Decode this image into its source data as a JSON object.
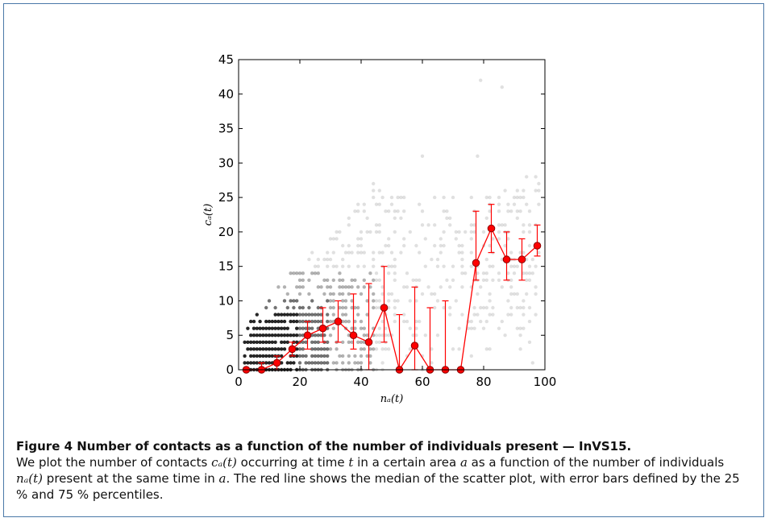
{
  "figure": {
    "caption_title": "Figure 4 Number of contacts as a function of the number of individuals present — InVS15.",
    "caption_parts": [
      {
        "text": "We plot the number of contacts ",
        "math": false
      },
      {
        "text": "cₐ(t)",
        "math": true
      },
      {
        "text": " occurring at time ",
        "math": false
      },
      {
        "text": "t",
        "math": true
      },
      {
        "text": " in a certain area ",
        "math": false
      },
      {
        "text": "a",
        "math": true
      },
      {
        "text": " as a function of the number of individuals ",
        "math": false
      },
      {
        "text": "nₐ(t)",
        "math": true
      },
      {
        "text": " present at the same time in ",
        "math": false
      },
      {
        "text": "a",
        "math": true
      },
      {
        "text": ". The red line shows the median of the scatter plot, with error bars defined by the ",
        "math": false
      },
      {
        "text": "25 %",
        "math": false
      },
      {
        "text": " and ",
        "math": false
      },
      {
        "text": "75 %",
        "math": false
      },
      {
        "text": " percentiles.",
        "math": false
      }
    ]
  },
  "chart_data": {
    "type": "scatter",
    "xlabel": "nₐ(t)",
    "ylabel": "cₐ(t)",
    "xlim": [
      0,
      100
    ],
    "ylim": [
      0,
      45
    ],
    "x_ticks": [
      0,
      20,
      40,
      60,
      80,
      100
    ],
    "y_ticks": [
      0,
      5,
      10,
      15,
      20,
      25,
      30,
      35,
      40,
      45
    ],
    "grid": false,
    "colors": {
      "scatter": "#000000",
      "median": "#ff0000",
      "median_edge": "#8b0000"
    },
    "scatter_note_values": {
      "x_range": [
        2,
        98
      ],
      "y_range": [
        0,
        42
      ]
    },
    "median_series": {
      "x": [
        2.5,
        7.5,
        12.5,
        17.5,
        22.5,
        27.5,
        32.5,
        37.5,
        42.5,
        47.5,
        52.5,
        57.5,
        62.5,
        67.5,
        72.5,
        77.5,
        82.5,
        87.5,
        92.5,
        97.5
      ],
      "y": [
        0,
        0,
        1,
        3,
        5,
        6,
        7,
        5,
        4,
        9,
        0,
        3.5,
        0,
        0,
        0,
        15.5,
        20.5,
        16,
        16,
        18
      ],
      "q25": [
        0,
        0,
        0,
        2,
        3,
        4,
        4,
        3,
        0,
        4,
        0,
        0,
        0,
        0,
        0,
        13,
        17,
        13,
        13,
        16.5
      ],
      "q75": [
        0,
        1,
        2,
        4,
        7,
        9,
        10,
        11,
        12.5,
        15,
        8,
        12,
        9,
        10,
        0,
        23,
        24,
        20,
        19,
        21
      ]
    }
  }
}
